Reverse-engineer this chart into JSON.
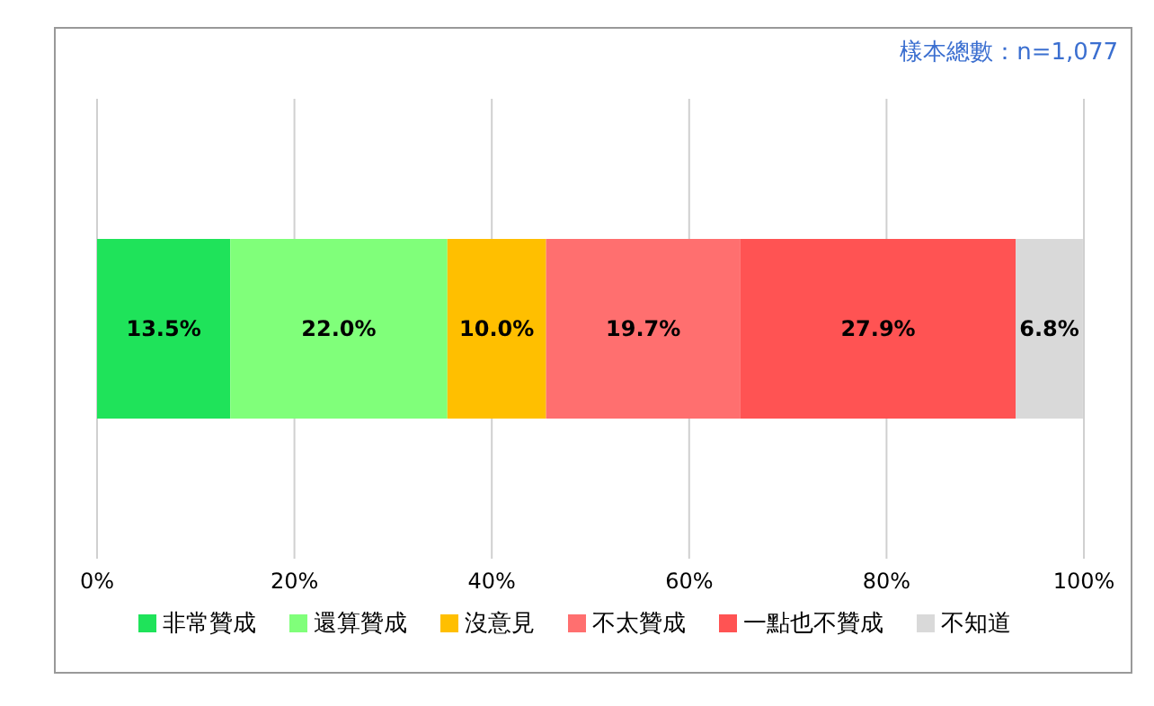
{
  "chart_data": {
    "type": "bar",
    "orientation": "horizontal",
    "stacked": true,
    "categories": [
      null
    ],
    "series": [
      {
        "name": "非常贊成",
        "color": "#1fe35a",
        "values": [
          13.5
        ],
        "value_labels": [
          "13.5%"
        ]
      },
      {
        "name": "還算贊成",
        "color": "#80ff7a",
        "values": [
          22.0
        ],
        "value_labels": [
          "22.0%"
        ]
      },
      {
        "name": "沒意見",
        "color": "#ffbf00",
        "values": [
          10.0
        ],
        "value_labels": [
          "10.0%"
        ]
      },
      {
        "name": "不太贊成",
        "color": "#ff6f6f",
        "values": [
          19.7
        ],
        "value_labels": [
          "19.7%"
        ]
      },
      {
        "name": "一點也不贊成",
        "color": "#ff5353",
        "values": [
          27.9
        ],
        "value_labels": [
          "27.9%"
        ]
      },
      {
        "name": "不知道",
        "color": "#d9d9d9",
        "values": [
          6.8
        ],
        "value_labels": [
          "6.8%"
        ]
      }
    ],
    "xlim": [
      0,
      100
    ],
    "xticks": [
      {
        "value": 0,
        "label": "0%"
      },
      {
        "value": 20,
        "label": "20%"
      },
      {
        "value": 40,
        "label": "40%"
      },
      {
        "value": 60,
        "label": "60%"
      },
      {
        "value": 80,
        "label": "80%"
      },
      {
        "value": 100,
        "label": "100%"
      }
    ],
    "grid": "x",
    "legend": "bottom",
    "tick_labels": "x",
    "annotations": [
      "樣本總數：n=1,077"
    ]
  }
}
